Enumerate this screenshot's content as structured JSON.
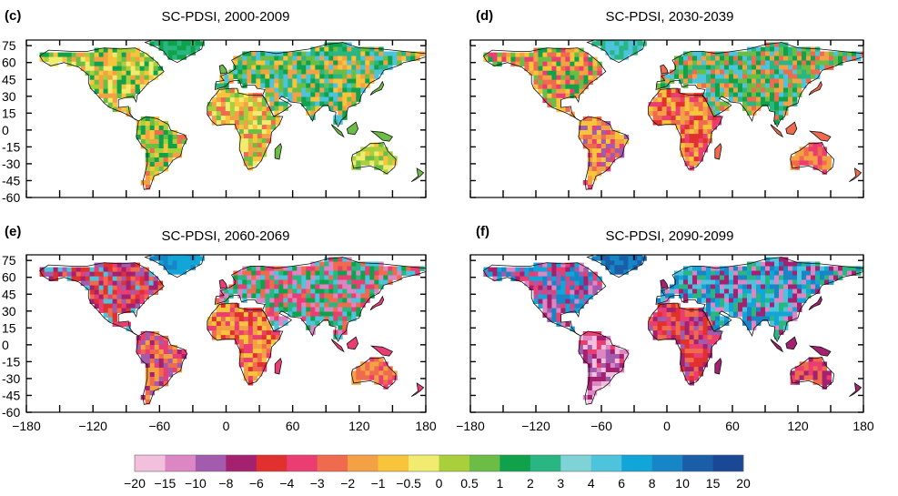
{
  "chart_data": {
    "type": "heatmap",
    "variable": "SC-PDSI",
    "panels": [
      {
        "id": "c",
        "letter": "(c)",
        "title": "SC-PDSI, 2000-2009"
      },
      {
        "id": "d",
        "letter": "(d)",
        "title": "SC-PDSI, 2030-2039"
      },
      {
        "id": "e",
        "letter": "(e)",
        "title": "SC-PDSI, 2060-2069"
      },
      {
        "id": "f",
        "letter": "(f)",
        "title": "SC-PDSI, 2090-2099"
      }
    ],
    "y_ticks": [
      75,
      60,
      45,
      30,
      15,
      0,
      -15,
      -30,
      -45,
      -60
    ],
    "y_tick_labels": [
      "75",
      "60",
      "45",
      "30",
      "15",
      "0",
      "-15",
      "-30",
      "-45",
      "-60"
    ],
    "x_ticks": [
      -180,
      -120,
      -60,
      0,
      60,
      120,
      180
    ],
    "x_tick_labels": [
      "−180",
      "−120",
      "−60",
      "0",
      "60",
      "120",
      "180"
    ],
    "xlim": [
      -180,
      180
    ],
    "ylim": [
      -60,
      80
    ],
    "colorbar": {
      "boundaries": [
        "−20",
        "−15",
        "−10",
        "−8",
        "−6",
        "−4",
        "−3",
        "−2",
        "−1",
        "−0.5",
        "0",
        "0.5",
        "1",
        "2",
        "3",
        "4",
        "6",
        "8",
        "10",
        "15",
        "20"
      ],
      "colors": [
        "#f2bfdd",
        "#dd86c4",
        "#a25bad",
        "#a3216e",
        "#e0312f",
        "#ea3d72",
        "#f06a4e",
        "#f4a145",
        "#f8c43c",
        "#f1ec70",
        "#a9cf3b",
        "#6bbd45",
        "#10a24b",
        "#2ab682",
        "#7fd3d6",
        "#4dc3dc",
        "#12a6d8",
        "#1786c6",
        "#1a5ea7",
        "#1b4896"
      ]
    },
    "regions": [
      {
        "panel": "c",
        "lon": -100,
        "lat": 45,
        "value": 2
      },
      {
        "panel": "c",
        "lon": -60,
        "lat": -10,
        "value": 0.5
      },
      {
        "panel": "c",
        "lon": 20,
        "lat": 15,
        "value": -3
      },
      {
        "panel": "c",
        "lon": 20,
        "lat": 55,
        "value": 1
      },
      {
        "panel": "c",
        "lon": 90,
        "lat": 60,
        "value": 2
      },
      {
        "panel": "c",
        "lon": 135,
        "lat": -25,
        "value": -0.5
      },
      {
        "panel": "d",
        "lon": -100,
        "lat": 40,
        "value": -2
      },
      {
        "panel": "d",
        "lon": -60,
        "lat": -10,
        "value": -3
      },
      {
        "panel": "d",
        "lon": 20,
        "lat": 15,
        "value": -4
      },
      {
        "panel": "d",
        "lon": 90,
        "lat": 60,
        "value": 3
      },
      {
        "panel": "d",
        "lon": 135,
        "lat": -25,
        "value": -2
      },
      {
        "panel": "e",
        "lon": -100,
        "lat": 40,
        "value": -8
      },
      {
        "panel": "e",
        "lon": -60,
        "lat": -10,
        "value": -6
      },
      {
        "panel": "e",
        "lon": 20,
        "lat": 30,
        "value": -10
      },
      {
        "panel": "e",
        "lon": 90,
        "lat": 60,
        "value": 4
      },
      {
        "panel": "e",
        "lon": 135,
        "lat": -25,
        "value": -4
      },
      {
        "panel": "f",
        "lon": -100,
        "lat": 40,
        "value": -10
      },
      {
        "panel": "f",
        "lon": -60,
        "lat": -10,
        "value": -10
      },
      {
        "panel": "f",
        "lon": 20,
        "lat": 30,
        "value": -15
      },
      {
        "panel": "f",
        "lon": 90,
        "lat": 60,
        "value": 6
      },
      {
        "panel": "f",
        "lon": 135,
        "lat": -25,
        "value": -6
      }
    ]
  }
}
